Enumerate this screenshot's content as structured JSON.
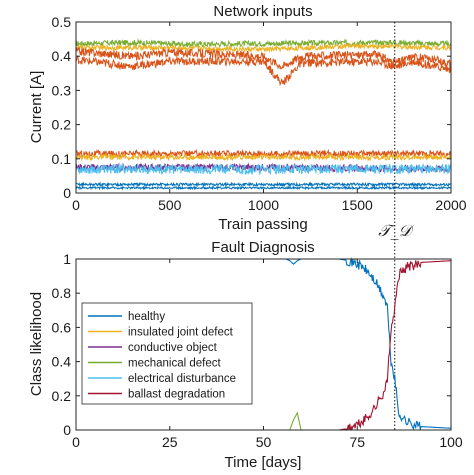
{
  "colors": {
    "healthy": "#0072bd",
    "insulated_joint_defect": "#edb120",
    "conductive_object": "#7e2f8e",
    "mechanical_defect": "#77ac30",
    "electrical_disturbance": "#4dbeee",
    "ballast_degradation": "#a2142f",
    "orange_series": "#d95319"
  },
  "marker": {
    "label": "𝒯_𝒟",
    "x": 1700
  },
  "chart_data": [
    {
      "type": "line",
      "title": "Network inputs",
      "xlabel": "Train passing",
      "ylabel": "Current [A]",
      "xlim": [
        0,
        2000
      ],
      "ylim": [
        0,
        0.5
      ],
      "xticks": [
        "0",
        "500",
        "1000",
        "1500",
        "2000"
      ],
      "yticks": [
        "0",
        "0.1",
        "0.2",
        "0.3",
        "0.4",
        "0.5"
      ],
      "grid": false,
      "series": [
        {
          "color": "#77ac30",
          "base": 0.437,
          "noise": 0.008,
          "values": [
            [
              0,
              0.437
            ],
            [
              300,
              0.44
            ],
            [
              600,
              0.435
            ],
            [
              1000,
              0.437
            ],
            [
              1700,
              0.44
            ],
            [
              2000,
              0.435
            ]
          ]
        },
        {
          "color": "#edb120",
          "base": 0.425,
          "noise": 0.007,
          "values": [
            [
              0,
              0.425
            ],
            [
              500,
              0.425
            ],
            [
              1000,
              0.42
            ],
            [
              1500,
              0.43
            ],
            [
              2000,
              0.425
            ]
          ]
        },
        {
          "color": "#d95319",
          "base": 0.41,
          "noise": 0.012,
          "values": [
            [
              0,
              0.415
            ],
            [
              300,
              0.4
            ],
            [
              500,
              0.412
            ],
            [
              1000,
              0.4
            ],
            [
              1100,
              0.37
            ],
            [
              1200,
              0.4
            ],
            [
              1600,
              0.405
            ],
            [
              1700,
              0.38
            ],
            [
              1800,
              0.4
            ],
            [
              2000,
              0.38
            ]
          ]
        },
        {
          "color": "#d95319",
          "base": 0.385,
          "noise": 0.012,
          "values": [
            [
              0,
              0.39
            ],
            [
              300,
              0.37
            ],
            [
              500,
              0.385
            ],
            [
              1000,
              0.385
            ],
            [
              1100,
              0.32
            ],
            [
              1200,
              0.38
            ],
            [
              1600,
              0.385
            ],
            [
              1700,
              0.37
            ],
            [
              1800,
              0.385
            ],
            [
              2000,
              0.36
            ]
          ]
        },
        {
          "color": "#d95319",
          "base": 0.115,
          "noise": 0.009,
          "values": [
            [
              0,
              0.115
            ],
            [
              1000,
              0.115
            ],
            [
              2000,
              0.115
            ]
          ]
        },
        {
          "color": "#edb120",
          "base": 0.105,
          "noise": 0.008,
          "values": [
            [
              0,
              0.105
            ],
            [
              1000,
              0.105
            ],
            [
              2000,
              0.105
            ]
          ]
        },
        {
          "color": "#7e2f8e",
          "base": 0.075,
          "noise": 0.01,
          "values": [
            [
              0,
              0.075
            ],
            [
              1000,
              0.075
            ],
            [
              2000,
              0.07
            ]
          ]
        },
        {
          "color": "#4dbeee",
          "base": 0.07,
          "noise": 0.014,
          "values": [
            [
              0,
              0.07
            ],
            [
              1000,
              0.07
            ],
            [
              2000,
              0.07
            ]
          ]
        },
        {
          "color": "#0072bd",
          "base": 0.025,
          "noise": 0.004,
          "values": [
            [
              0,
              0.025
            ],
            [
              1000,
              0.025
            ],
            [
              2000,
              0.025
            ]
          ]
        },
        {
          "color": "#0072bd",
          "base": 0.015,
          "noise": 0.003,
          "values": [
            [
              0,
              0.015
            ],
            [
              1000,
              0.015
            ],
            [
              2000,
              0.015
            ]
          ]
        }
      ]
    },
    {
      "type": "line",
      "title": "Fault Diagnosis",
      "xlabel": "Time [days]",
      "ylabel": "Class likelihood",
      "xlim": [
        0,
        100
      ],
      "ylim": [
        0,
        1
      ],
      "xticks": [
        "0",
        "25",
        "50",
        "75",
        "100"
      ],
      "yticks": [
        "0",
        "0.2",
        "0.4",
        "0.6",
        "0.8",
        "1"
      ],
      "grid": false,
      "legend_position": "center-left",
      "series": [
        {
          "name": "healthy",
          "color": "#0072bd",
          "values": [
            [
              0,
              1
            ],
            [
              56,
              1
            ],
            [
              57,
              0.99
            ],
            [
              58,
              0.97
            ],
            [
              59,
              0.99
            ],
            [
              60,
              1
            ],
            [
              70,
              1
            ],
            [
              73,
              0.99
            ],
            [
              76,
              0.96
            ],
            [
              78,
              0.92
            ],
            [
              80,
              0.86
            ],
            [
              82,
              0.78
            ],
            [
              83,
              0.72
            ],
            [
              84,
              0.4
            ],
            [
              85,
              0.3
            ],
            [
              86,
              0.1
            ],
            [
              88,
              0.05
            ],
            [
              92,
              0.02
            ],
            [
              100,
              0.01
            ]
          ]
        },
        {
          "name": "insulated joint defect",
          "color": "#edb120",
          "values": [
            [
              0,
              0
            ],
            [
              100,
              0
            ]
          ]
        },
        {
          "name": "conductive object",
          "color": "#7e2f8e",
          "values": [
            [
              0,
              0
            ],
            [
              100,
              0
            ]
          ]
        },
        {
          "name": "mechanical defect",
          "color": "#77ac30",
          "values": [
            [
              0,
              0
            ],
            [
              57,
              0
            ],
            [
              58,
              0.06
            ],
            [
              59,
              0.1
            ],
            [
              60,
              0
            ],
            [
              100,
              0
            ]
          ]
        },
        {
          "name": "electrical disturbance",
          "color": "#4dbeee",
          "values": [
            [
              0,
              0
            ],
            [
              100,
              0
            ]
          ]
        },
        {
          "name": "ballast degradation",
          "color": "#a2142f",
          "values": [
            [
              0,
              0
            ],
            [
              70,
              0
            ],
            [
              73,
              0.01
            ],
            [
              76,
              0.04
            ],
            [
              78,
              0.08
            ],
            [
              80,
              0.14
            ],
            [
              82,
              0.22
            ],
            [
              83,
              0.28
            ],
            [
              84,
              0.6
            ],
            [
              85,
              0.7
            ],
            [
              86,
              0.9
            ],
            [
              88,
              0.95
            ],
            [
              92,
              0.98
            ],
            [
              100,
              0.99
            ]
          ]
        }
      ]
    }
  ]
}
